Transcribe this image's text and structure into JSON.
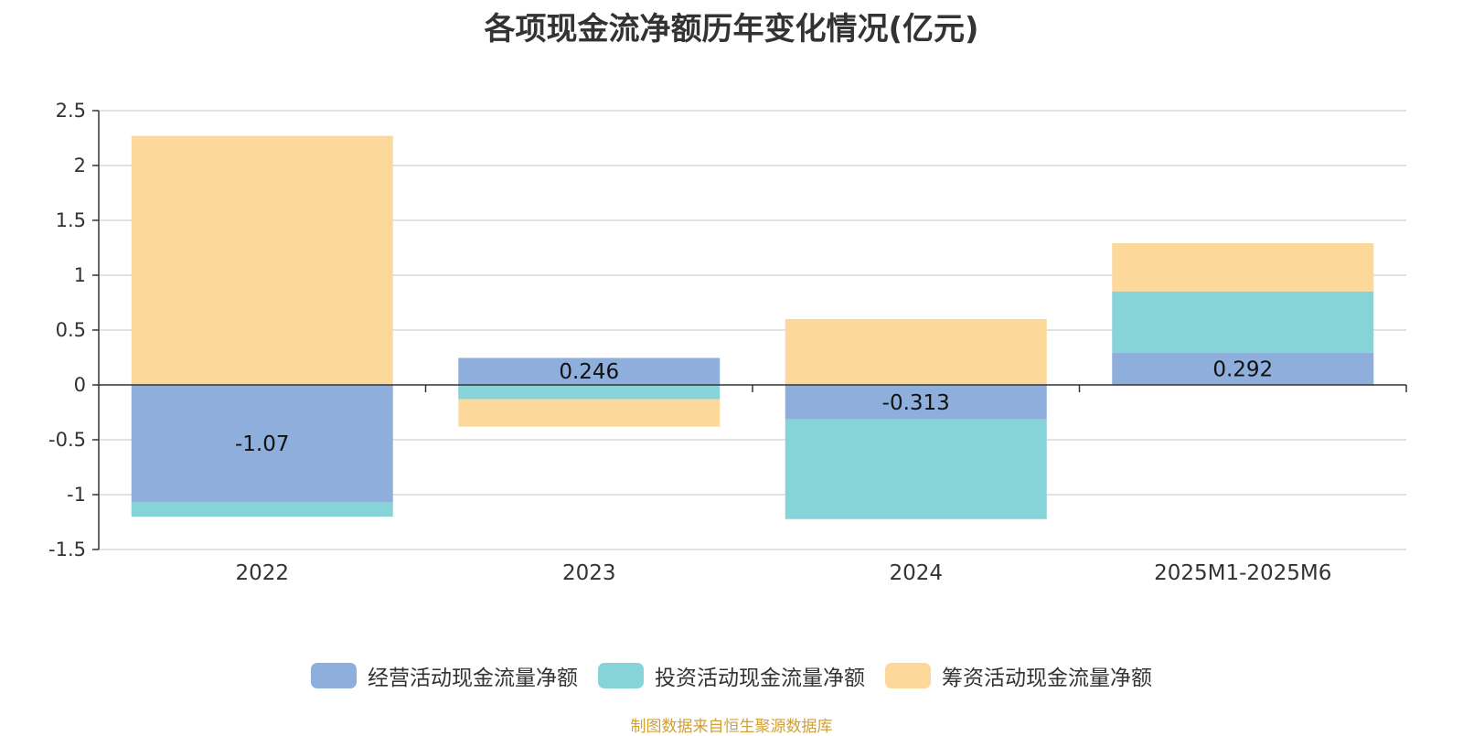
{
  "chart_data": {
    "type": "bar",
    "stacked": true,
    "title": "各项现金流净额历年变化情况(亿元)",
    "categories": [
      "2022",
      "2023",
      "2024",
      "2025M1-2025M6"
    ],
    "series": [
      {
        "name": "经营活动现金流量净额",
        "color": "#8eaedb",
        "values": [
          -1.07,
          0.246,
          -0.313,
          0.292
        ]
      },
      {
        "name": "投资活动现金流量净额",
        "color": "#87d4d8",
        "values": [
          -0.13,
          -0.13,
          -0.91,
          0.56
        ]
      },
      {
        "name": "筹资活动现金流量净额",
        "color": "#fdd89b",
        "values": [
          2.27,
          -0.25,
          0.6,
          0.44
        ]
      }
    ],
    "data_labels": [
      "-1.07",
      "0.246",
      "-0.313",
      "0.292"
    ],
    "ylim": [
      -1.5,
      2.5
    ],
    "yticks": [
      2.5,
      2,
      1.5,
      1,
      0.5,
      0,
      -0.5,
      -1,
      -1.5
    ],
    "ytick_labels": [
      "2.5",
      "2",
      "1.5",
      "1",
      "0.5",
      "0",
      "-0.5",
      "-1",
      "-1.5"
    ],
    "xlabel": "",
    "ylabel": "",
    "grid": true,
    "legend_position": "bottom-center"
  },
  "source_note": "制图数据来自恒生聚源数据库"
}
